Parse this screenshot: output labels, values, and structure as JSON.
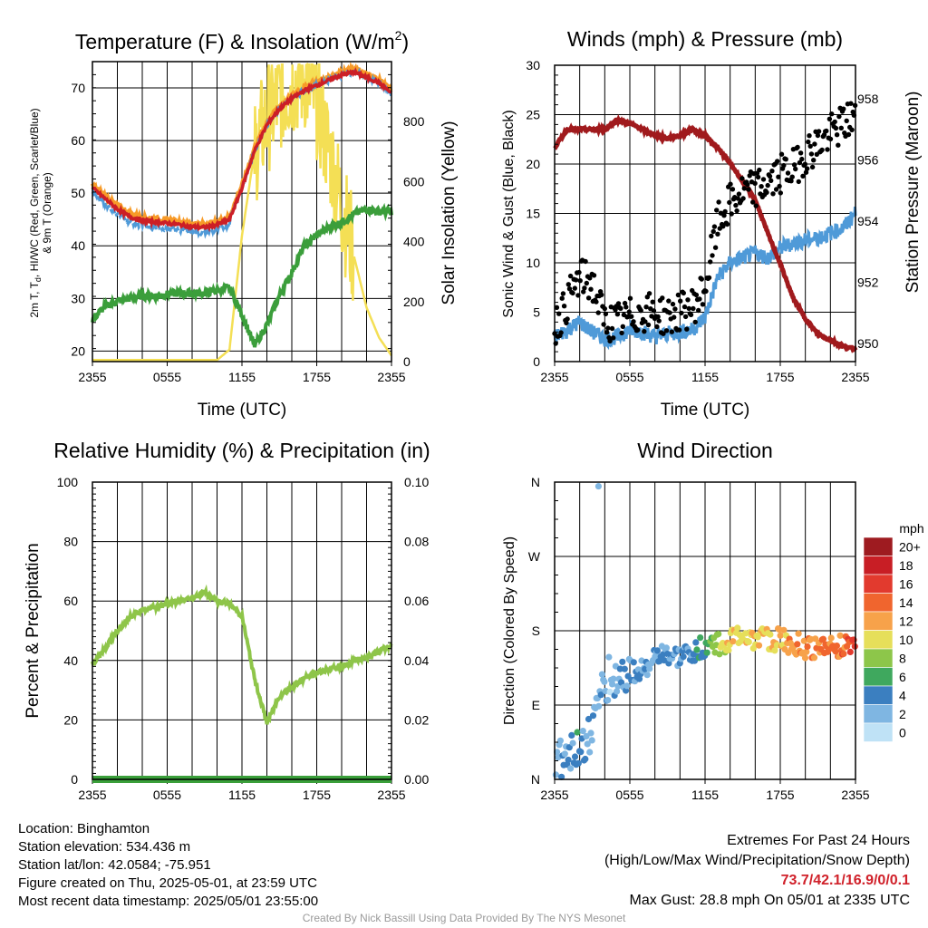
{
  "colors": {
    "temp": "#cc1f26",
    "heat_index": "#f58a1f",
    "wind_chill": "#e8452a",
    "temp_9m": "#f79b28",
    "dewpoint": "#3b9e3b",
    "insolation": "#f4df55",
    "wind": "#4f9ad8",
    "gust": "#000000",
    "pressure": "#a01a1d",
    "rh": "#8ec549",
    "precip": "#3a9f3a",
    "grid": "#000000",
    "extremes": "#d0212a",
    "credit": "#9a9a9a"
  },
  "charts": {
    "temperature": {
      "title": "Temperature (F) & Insolation (W/m²)",
      "title_main": "Temperature (F) & Insolation (W/m",
      "title_sup": "2",
      "title_end": ")",
      "xlabel": "Time (UTC)",
      "ylabel_line1": "2m T, T",
      "ylabel_sub": "d",
      "ylabel_line1_end": ", HI/WC (Red, Green, Scarlet/Blue)",
      "ylabel_line2": "& 9m T (Orange)",
      "y2label": "Solar Insolation (Yellow)"
    },
    "winds": {
      "title": "Winds (mph) & Pressure (mb)",
      "xlabel": "Time (UTC)",
      "ylabel": "Sonic Wind & Gust (Blue, Black)",
      "y2label": "Station Pressure (Maroon)"
    },
    "humidity": {
      "title": "Relative Humidity (%) & Precipitation (in)",
      "ylabel": "Percent & Precipitation"
    },
    "direction": {
      "title": "Wind Direction",
      "ylabel": "Direction (Colored By Speed)",
      "colorbar_title": "mph",
      "colorbar_labels": [
        "20+",
        "18",
        "16",
        "14",
        "12",
        "10",
        "8",
        "6",
        "4",
        "2",
        "0"
      ],
      "colorbar_colors": [
        "#9e1b20",
        "#c81e25",
        "#e23a2e",
        "#f0652e",
        "#f7a24a",
        "#e6df5a",
        "#8dc64a",
        "#3fa85e",
        "#3b7fc0",
        "#7fb6e2",
        "#bfe2f6"
      ]
    }
  },
  "chart_data": [
    {
      "type": "line",
      "title": "Temperature (F) & Insolation (W/m²)",
      "xlabel": "Time (UTC)",
      "ylabel": "2m T, Td, HI/WC (Red, Green, Scarlet/Blue) & 9m T (Orange)",
      "y2label": "Solar Insolation (Yellow)",
      "x_ticks": [
        "2355",
        "0555",
        "1155",
        "1755",
        "2355"
      ],
      "xlim": [
        0,
        24
      ],
      "ylim": [
        18,
        75
      ],
      "y_ticks": [
        20,
        30,
        40,
        50,
        60,
        70
      ],
      "y2lim": [
        0,
        1000
      ],
      "y2_ticks": [
        0,
        200,
        400,
        600,
        800
      ],
      "grid": true,
      "x": [
        0,
        1,
        2,
        3,
        4,
        5,
        6,
        7,
        8,
        9,
        10,
        11,
        12,
        13,
        14,
        15,
        16,
        17,
        18,
        19,
        20,
        21,
        22,
        23,
        24
      ],
      "series": [
        {
          "values": [
            51,
            49,
            47,
            45.5,
            44.8,
            44.5,
            44.3,
            44,
            43.6,
            43.5,
            44,
            45,
            51,
            58,
            63,
            66,
            68,
            69.5,
            70.5,
            71.5,
            72.5,
            73,
            72,
            71,
            69
          ]
        },
        {
          "values": [
            26,
            28.5,
            29.5,
            30,
            30.5,
            30.5,
            30.8,
            31,
            31,
            31,
            31.5,
            32,
            27,
            21,
            25,
            30.5,
            35,
            40,
            42,
            43.5,
            44.5,
            46,
            47,
            46.5,
            46.5
          ]
        },
        {
          "axis": "y2",
          "values": [
            5,
            5,
            5,
            5,
            5,
            5,
            5,
            5,
            5,
            5,
            5,
            40,
            420,
            700,
            810,
            880,
            930,
            950,
            860,
            700,
            520,
            350,
            180,
            80,
            20
          ]
        }
      ]
    },
    {
      "type": "line",
      "title": "Winds (mph) & Pressure (mb)",
      "xlabel": "Time (UTC)",
      "ylabel": "Sonic Wind & Gust (Blue, Black)",
      "y2label": "Station Pressure (Maroon)",
      "x_ticks": [
        "2355",
        "0555",
        "1155",
        "1755",
        "2355"
      ],
      "xlim": [
        0,
        24
      ],
      "ylim": [
        0,
        30
      ],
      "y_ticks": [
        0,
        5,
        10,
        15,
        20,
        25,
        30
      ],
      "y2lim": [
        949.4,
        959.1
      ],
      "y2_ticks": [
        950,
        952,
        954,
        956,
        958
      ],
      "grid": true,
      "x": [
        0,
        1,
        2,
        3,
        4,
        5,
        6,
        7,
        8,
        9,
        10,
        11,
        12,
        13,
        14,
        15,
        16,
        17,
        18,
        19,
        20,
        21,
        22,
        23,
        24
      ],
      "series": [
        {
          "values": [
            2.5,
            3.2,
            4,
            3,
            2.3,
            2.5,
            3.2,
            3,
            2.5,
            2.8,
            3,
            3.2,
            4.5,
            8.5,
            10,
            10.5,
            11,
            10.5,
            11.5,
            12,
            12.3,
            12.5,
            13,
            13.5,
            15
          ]
        },
        {
          "values": [
            3.5,
            6,
            8.5,
            8,
            4,
            4,
            4.5,
            5,
            5,
            4.5,
            5,
            5.5,
            7.5,
            14,
            16,
            17,
            17.5,
            18,
            19,
            19.5,
            21,
            22,
            23,
            24,
            25
          ]
        },
        {
          "axis": "y2",
          "values": [
            956.4,
            957,
            957,
            957,
            957,
            957.3,
            957.2,
            957,
            956.8,
            956.7,
            956.8,
            957,
            956.8,
            956.4,
            955.9,
            955.3,
            954.7,
            953.6,
            952.6,
            951.5,
            950.8,
            950.3,
            950.1,
            949.9,
            949.8
          ]
        }
      ]
    },
    {
      "type": "line",
      "title": "Relative Humidity (%) & Precipitation (in)",
      "ylabel": "Percent & Precipitation",
      "x_ticks": [
        "2355",
        "0555",
        "1155",
        "1755",
        "2355"
      ],
      "xlim": [
        0,
        24
      ],
      "ylim": [
        0,
        100
      ],
      "y_ticks": [
        0,
        20,
        40,
        60,
        80,
        100
      ],
      "y2lim": [
        0,
        0.1
      ],
      "y2_ticks": [
        "0.00",
        "0.02",
        "0.04",
        "0.06",
        "0.08",
        "0.10"
      ],
      "grid": true,
      "x": [
        0,
        1,
        2,
        3,
        4,
        5,
        6,
        7,
        8,
        9,
        10,
        11,
        12,
        13,
        14,
        15,
        16,
        17,
        18,
        19,
        20,
        21,
        22,
        23,
        24
      ],
      "series": [
        {
          "values": [
            39,
            44,
            50,
            55,
            57,
            58,
            59,
            60,
            61,
            63,
            60,
            59,
            55,
            34,
            19,
            28,
            31,
            34,
            36,
            37,
            38,
            40,
            41,
            43,
            45
          ]
        },
        {
          "axis": "y2",
          "values": [
            0,
            0,
            0,
            0,
            0,
            0,
            0,
            0,
            0,
            0,
            0,
            0,
            0,
            0,
            0,
            0,
            0,
            0,
            0,
            0,
            0,
            0,
            0,
            0,
            0
          ]
        }
      ]
    },
    {
      "type": "scatter",
      "title": "Wind Direction",
      "ylabel": "Direction (Colored By Speed)",
      "x_ticks": [
        "2355",
        "0555",
        "1155",
        "1755",
        "2355"
      ],
      "y_ticks": [
        "N",
        "E",
        "S",
        "W",
        "N"
      ],
      "xlim": [
        0,
        24
      ],
      "ylim": [
        0,
        360
      ],
      "grid": true,
      "colorbar": {
        "title": "mph",
        "labels": [
          "20+",
          "18",
          "16",
          "14",
          "12",
          "10",
          "8",
          "6",
          "4",
          "2",
          "0"
        ]
      },
      "x": [
        0,
        1,
        2,
        3,
        4,
        5,
        6,
        7,
        8,
        9,
        10,
        11,
        12,
        13,
        14,
        15,
        16,
        17,
        18,
        19,
        20,
        21,
        22,
        23,
        24
      ],
      "direction": [
        25,
        30,
        40,
        60,
        120,
        125,
        130,
        135,
        145,
        150,
        145,
        155,
        160,
        165,
        168,
        175,
        170,
        168,
        170,
        165,
        160,
        160,
        160,
        162,
        165
      ],
      "speed": [
        3,
        3.5,
        4,
        3,
        2,
        2.5,
        3,
        3,
        3,
        3,
        3.5,
        3.5,
        5,
        8.5,
        10,
        10.5,
        11,
        10.5,
        11.5,
        12,
        12.5,
        13,
        13.5,
        14,
        16
      ]
    }
  ],
  "footer": {
    "location": "Location: Binghamton",
    "elevation": "Station elevation: 534.436 m",
    "latlon": "Station lat/lon: 42.0584; -75.951",
    "created": "Figure created on Thu, 2025-05-01, at 23:59 UTC",
    "recent": "Most recent data timestamp: 2025/05/01 23:55:00",
    "extremes_title": "Extremes For Past 24 Hours",
    "extremes_desc": "(High/Low/Max Wind/Precipitation/Snow Depth)",
    "extremes_values": "73.7/42.1/16.9/0/0.1",
    "max_gust": "Max Gust: 28.8 mph On 05/01 at 2335 UTC",
    "credit": "Created By Nick Bassill Using Data Provided By The NYS Mesonet"
  }
}
